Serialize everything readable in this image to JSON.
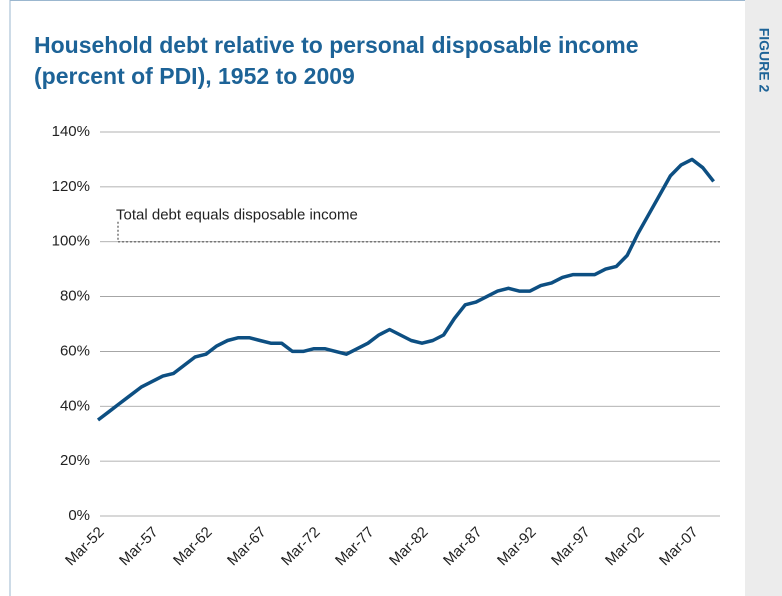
{
  "figure_label": "FIGURE 2",
  "chart_data": {
    "type": "line",
    "title": "Household debt relative to personal disposable income (percent of PDI), 1952 to 2009",
    "categories": [
      "Mar-52",
      null,
      null,
      null,
      null,
      "Mar-57",
      null,
      null,
      null,
      null,
      "Mar-62",
      null,
      null,
      null,
      null,
      "Mar-67",
      null,
      null,
      null,
      null,
      "Mar-72",
      null,
      null,
      null,
      null,
      "Mar-77",
      null,
      null,
      null,
      null,
      "Mar-82",
      null,
      null,
      null,
      null,
      "Mar-87",
      null,
      null,
      null,
      null,
      "Mar-92",
      null,
      null,
      null,
      null,
      "Mar-97",
      null,
      null,
      null,
      null,
      "Mar-02",
      null,
      null,
      null,
      null,
      "Mar-07",
      null,
      null
    ],
    "series": [
      {
        "name": "Household debt to PDI",
        "color": "#0d4f82",
        "values": [
          35,
          38,
          41,
          44,
          47,
          49,
          51,
          52,
          55,
          58,
          59,
          62,
          64,
          65,
          65,
          64,
          63,
          63,
          60,
          60,
          61,
          61,
          60,
          59,
          61,
          63,
          66,
          68,
          66,
          64,
          63,
          64,
          66,
          72,
          77,
          78,
          80,
          82,
          83,
          82,
          82,
          84,
          85,
          87,
          88,
          88,
          88,
          90,
          91,
          95,
          103,
          110,
          117,
          124,
          128,
          130,
          127,
          122
        ]
      }
    ],
    "ylim": [
      0,
      140
    ],
    "yticks": [
      {
        "value": 0,
        "label": "0%"
      },
      {
        "value": 20,
        "label": "20%"
      },
      {
        "value": 40,
        "label": "40%"
      },
      {
        "value": 60,
        "label": "60%"
      },
      {
        "value": 80,
        "label": "80%"
      },
      {
        "value": 100,
        "label": "100%"
      },
      {
        "value": 120,
        "label": "120%"
      },
      {
        "value": 140,
        "label": "140%"
      }
    ],
    "grid": true,
    "reference": {
      "value": 100,
      "label": "Total debt equals disposable income"
    }
  }
}
